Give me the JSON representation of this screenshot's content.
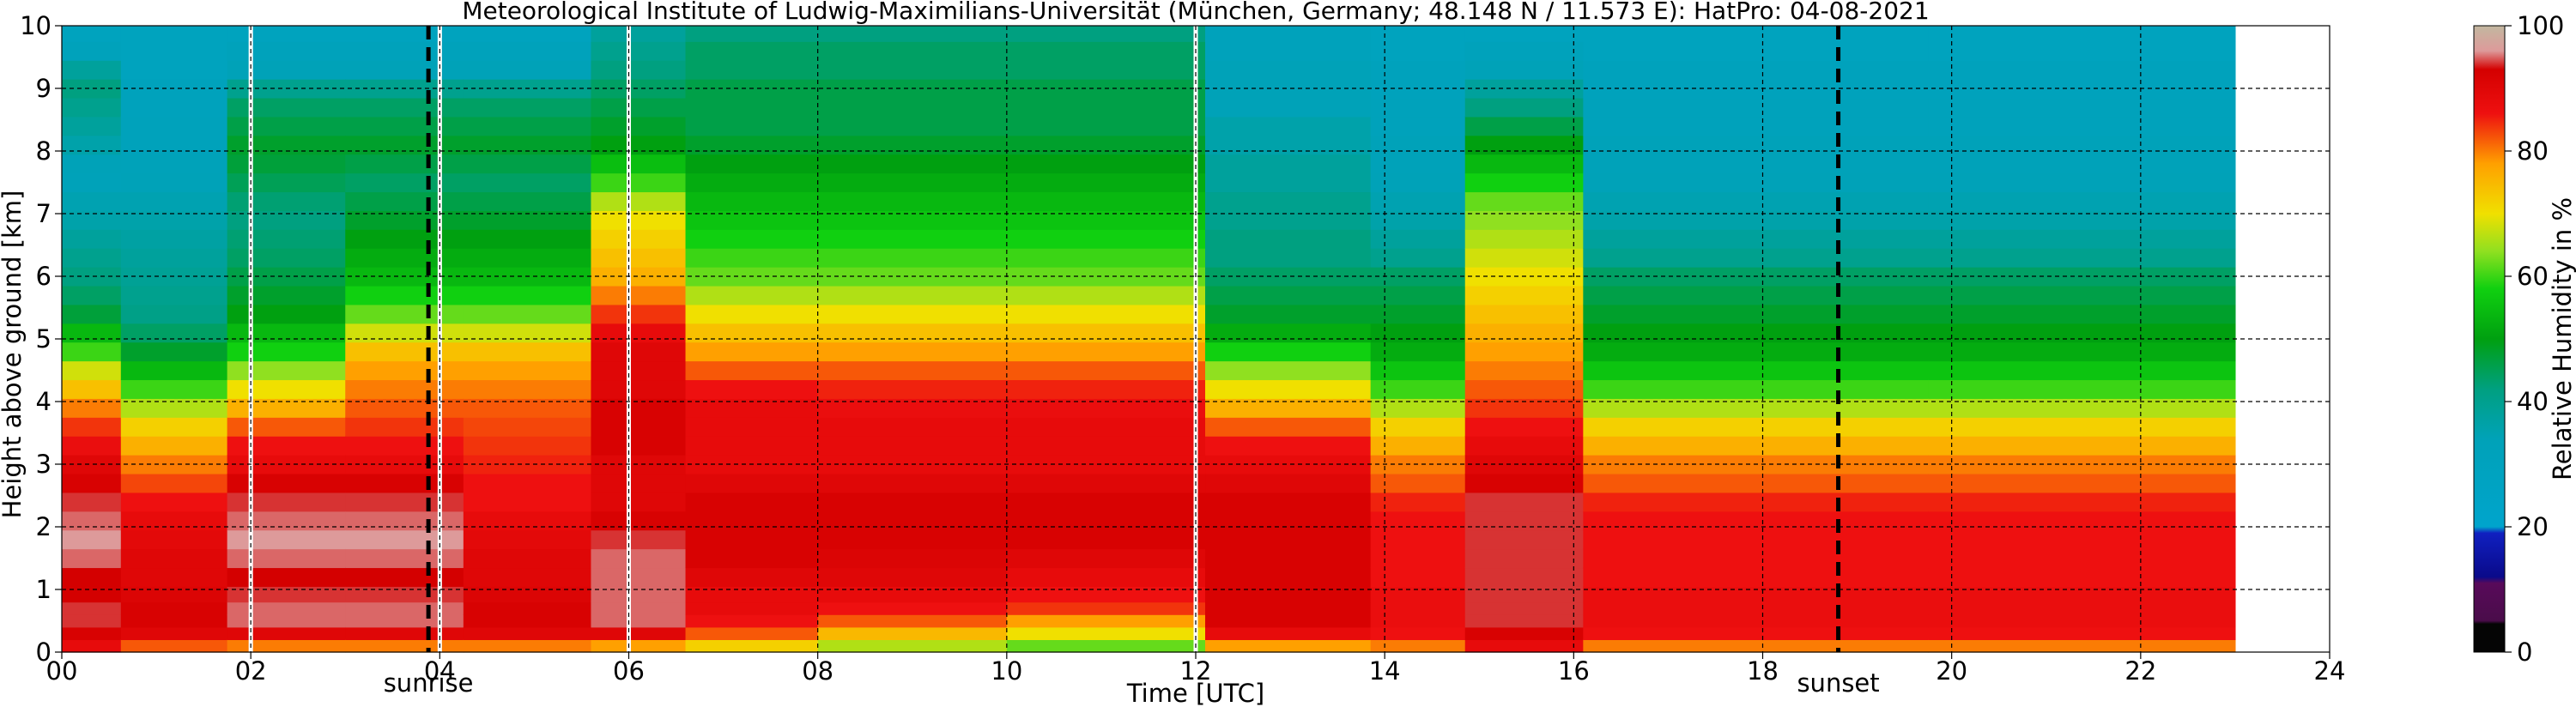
{
  "chart_data": {
    "type": "heatmap",
    "title": "Meteorological Institute of Ludwig-Maximilians-Universität (München, Germany; 48.148 N / 11.573 E):    HatPro: 04-08-2021",
    "xlabel": "Time [UTC]",
    "ylabel": "Height above ground [km]",
    "colorbar_label": "Relative Humidity in %",
    "xlim": [
      0,
      24
    ],
    "ylim": [
      0,
      10
    ],
    "data_end_hour": 23.0,
    "x_ticks": [
      "00",
      "02",
      "04",
      "06",
      "08",
      "10",
      "12",
      "14",
      "16",
      "18",
      "20",
      "22",
      "24"
    ],
    "y_ticks": [
      "0",
      "1",
      "2",
      "3",
      "4",
      "5",
      "6",
      "7",
      "8",
      "9",
      "10"
    ],
    "colorbar_ticks": [
      "0",
      "20",
      "40",
      "60",
      "80",
      "100"
    ],
    "grid": true,
    "data_gaps_hours": [
      2.0,
      4.0,
      6.0,
      12.0
    ],
    "markers": [
      {
        "label": "sunrise",
        "hour": 3.88
      },
      {
        "label": "sunset",
        "hour": 18.8
      }
    ],
    "height_km": [
      0.1,
      0.3,
      0.5,
      0.7,
      0.9,
      1.2,
      1.5,
      1.8,
      2.1,
      2.4,
      2.7,
      3.0,
      3.3,
      3.6,
      3.9,
      4.2,
      4.5,
      4.8,
      5.1,
      5.4,
      5.7,
      6.0,
      6.3,
      6.6,
      6.9,
      7.2,
      7.5,
      7.8,
      8.1,
      8.4,
      8.7,
      9.0,
      9.3,
      9.6,
      9.9
    ],
    "series": [
      {
        "time_utc": 0.25,
        "rh": [
          88,
          92,
          94,
          94,
          93,
          93,
          95,
          96,
          95,
          94,
          92,
          90,
          87,
          84,
          80,
          74,
          68,
          60,
          54,
          47,
          44,
          42,
          40,
          38,
          36,
          35,
          33,
          34,
          36,
          38,
          40,
          42,
          38,
          32,
          30
        ]
      },
      {
        "time_utc": 1.0,
        "rh": [
          82,
          90,
          92,
          92,
          91,
          90,
          90,
          89,
          88,
          86,
          83,
          80,
          76,
          72,
          66,
          60,
          54,
          48,
          44,
          41,
          40,
          39,
          38,
          37,
          36,
          35,
          34,
          33,
          32,
          32,
          31,
          31,
          30,
          30,
          30
        ]
      },
      {
        "time_utc": 2.5,
        "rh": [
          80,
          90,
          95,
          95,
          94,
          93,
          95,
          96,
          95,
          94,
          92,
          88,
          86,
          82,
          76,
          70,
          64,
          58,
          54,
          50,
          48,
          46,
          44,
          43,
          42,
          43,
          45,
          47,
          48,
          46,
          44,
          40,
          34,
          32,
          30
        ]
      },
      {
        "time_utc": 3.5,
        "rh": [
          80,
          90,
          95,
          95,
          94,
          93,
          95,
          96,
          95,
          94,
          92,
          88,
          86,
          84,
          82,
          80,
          78,
          74,
          68,
          62,
          58,
          54,
          52,
          50,
          48,
          46,
          44,
          46,
          48,
          46,
          44,
          40,
          34,
          32,
          30
        ]
      },
      {
        "time_utc": 5.0,
        "rh": [
          80,
          90,
          92,
          92,
          91,
          90,
          90,
          89,
          88,
          86,
          86,
          85,
          84,
          83,
          82,
          80,
          78,
          74,
          68,
          62,
          58,
          54,
          52,
          50,
          48,
          46,
          44,
          46,
          48,
          46,
          44,
          40,
          34,
          32,
          30
        ]
      },
      {
        "time_utc": 6.2,
        "rh": [
          78,
          90,
          95,
          95,
          95,
          95,
          95,
          94,
          92,
          90,
          90,
          90,
          92,
          92,
          92,
          90,
          90,
          90,
          88,
          84,
          80,
          76,
          74,
          72,
          70,
          66,
          60,
          55,
          50,
          48,
          46,
          44,
          42,
          40,
          38
        ]
      },
      {
        "time_utc": 7.0,
        "rh": [
          72,
          82,
          86,
          88,
          88,
          90,
          92,
          92,
          92,
          92,
          90,
          88,
          88,
          88,
          88,
          86,
          82,
          78,
          74,
          70,
          66,
          62,
          60,
          58,
          56,
          54,
          52,
          50,
          48,
          46,
          46,
          46,
          44,
          44,
          42
        ]
      },
      {
        "time_utc": 9.0,
        "rh": [
          66,
          75,
          82,
          86,
          88,
          90,
          91,
          92,
          92,
          92,
          90,
          88,
          88,
          88,
          87,
          85,
          82,
          78,
          74,
          70,
          66,
          62,
          60,
          58,
          56,
          54,
          52,
          50,
          48,
          46,
          46,
          46,
          44,
          44,
          42
        ]
      },
      {
        "time_utc": 11.0,
        "rh": [
          62,
          70,
          78,
          84,
          86,
          88,
          90,
          92,
          92,
          92,
          90,
          88,
          88,
          88,
          87,
          85,
          82,
          78,
          74,
          70,
          66,
          62,
          60,
          58,
          56,
          54,
          52,
          50,
          48,
          46,
          46,
          46,
          44,
          44,
          42
        ]
      },
      {
        "time_utc": 13.2,
        "rh": [
          78,
          88,
          92,
          92,
          92,
          92,
          92,
          92,
          92,
          92,
          90,
          88,
          86,
          82,
          76,
          70,
          64,
          58,
          52,
          48,
          46,
          44,
          42,
          42,
          40,
          40,
          38,
          38,
          36,
          36,
          34,
          34,
          34,
          32,
          32
        ]
      },
      {
        "time_utc": 14.5,
        "rh": [
          80,
          86,
          87,
          87,
          87,
          86,
          86,
          86,
          86,
          85,
          82,
          80,
          76,
          72,
          66,
          60,
          56,
          52,
          50,
          48,
          46,
          44,
          40,
          38,
          36,
          35,
          34,
          33,
          33,
          32,
          32,
          31,
          31,
          30,
          30
        ]
      },
      {
        "time_utc": 15.2,
        "rh": [
          88,
          92,
          94,
          94,
          94,
          94,
          94,
          94,
          94,
          94,
          92,
          90,
          88,
          86,
          84,
          82,
          80,
          78,
          76,
          74,
          72,
          70,
          68,
          66,
          64,
          62,
          58,
          54,
          50,
          46,
          42,
          38,
          34,
          32,
          30
        ]
      },
      {
        "time_utc": 17.0,
        "rh": [
          80,
          86,
          87,
          87,
          87,
          86,
          86,
          86,
          86,
          85,
          82,
          80,
          76,
          72,
          66,
          60,
          56,
          52,
          50,
          48,
          46,
          44,
          40,
          38,
          36,
          35,
          34,
          33,
          33,
          32,
          32,
          31,
          31,
          30,
          30
        ]
      },
      {
        "time_utc": 22.5,
        "rh": [
          80,
          86,
          87,
          87,
          87,
          86,
          86,
          86,
          86,
          85,
          82,
          80,
          76,
          72,
          66,
          60,
          56,
          52,
          50,
          48,
          46,
          44,
          40,
          38,
          36,
          35,
          34,
          33,
          33,
          32,
          32,
          31,
          31,
          30,
          30
        ]
      }
    ]
  }
}
